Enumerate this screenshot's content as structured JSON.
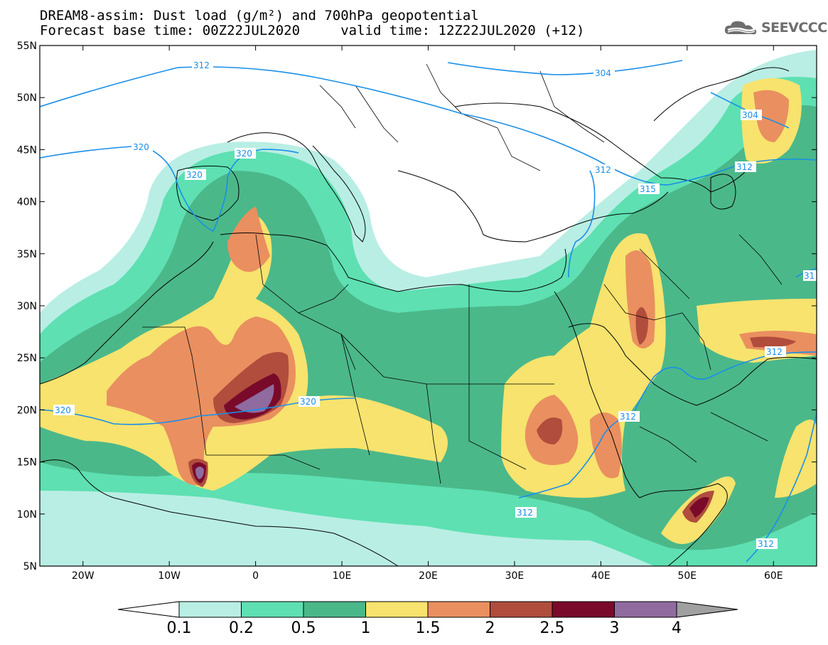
{
  "title": {
    "line1": "DREAM8-assim: Dust load (g/m²) and 700hPa geopotential",
    "line2": "Forecast base time: 00Z22JUL2020     valid time: 12Z22JUL2020 (+12)"
  },
  "logo": {
    "text": "SEEVCCC",
    "icon": "cloud-logo-icon",
    "color": "#6e6e6e"
  },
  "map": {
    "lon_range": [
      -25,
      65
    ],
    "lat_range": [
      5,
      55
    ],
    "lat_ticks": [
      "5N",
      "10N",
      "15N",
      "20N",
      "25N",
      "30N",
      "35N",
      "40N",
      "45N",
      "50N",
      "55N"
    ],
    "lon_ticks": [
      "20W",
      "10W",
      "0",
      "10E",
      "20E",
      "30E",
      "40E",
      "50E",
      "60E"
    ],
    "contour_color": "#1a8fe8",
    "contour_labels": [
      "312",
      "304",
      "320",
      "320",
      "320",
      "312",
      "304",
      "312",
      "315",
      "31",
      "320",
      "320",
      "312",
      "312",
      "312",
      "312"
    ]
  },
  "colorbar": {
    "levels": [
      "0.1",
      "0.2",
      "0.5",
      "1",
      "1.5",
      "2",
      "2.5",
      "3",
      "4"
    ],
    "colors": [
      "#ffffff",
      "#b9eee4",
      "#5ee0b2",
      "#4bb88a",
      "#f7e36e",
      "#ea8f60",
      "#b04d3c",
      "#7a0a2a",
      "#8f6ba0",
      "#a0a0a0"
    ]
  }
}
